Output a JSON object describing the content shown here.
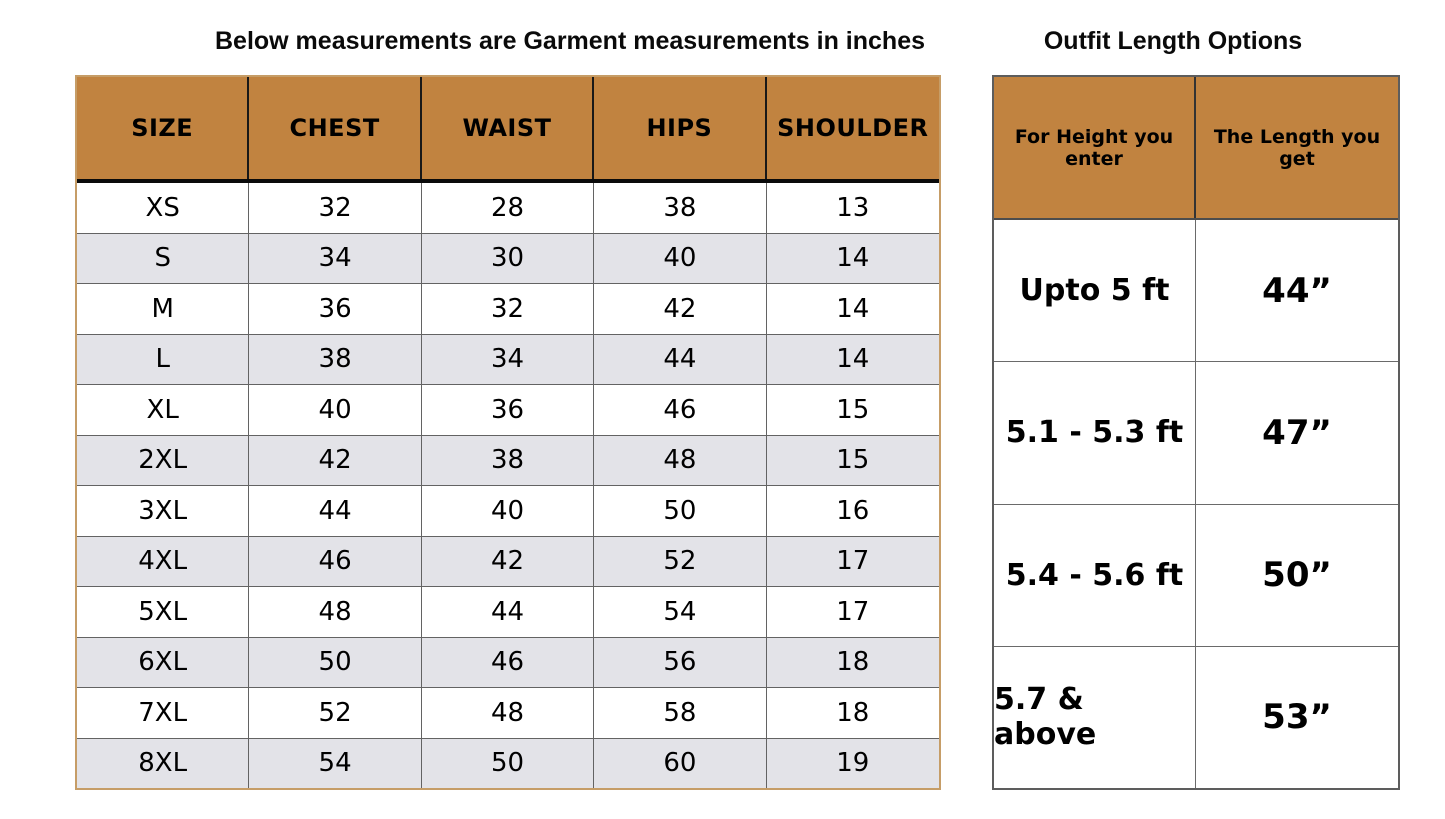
{
  "colors": {
    "header_bg": "#c18340",
    "alt_row_bg": "#e3e3e8",
    "size_table_outer_border": "#c69d67",
    "grid_line": "#636363",
    "text": "#000000"
  },
  "chart_data": [
    {
      "type": "table",
      "title": "Below measurements are Garment measurements in inches",
      "columns": [
        "SIZE",
        "CHEST",
        "WAIST",
        "HIPS",
        "SHOULDER"
      ],
      "rows": [
        [
          "XS",
          32,
          28,
          38,
          13
        ],
        [
          "S",
          34,
          30,
          40,
          14
        ],
        [
          "M",
          36,
          32,
          42,
          14
        ],
        [
          "L",
          38,
          34,
          44,
          14
        ],
        [
          "XL",
          40,
          36,
          46,
          15
        ],
        [
          "2XL",
          42,
          38,
          48,
          15
        ],
        [
          "3XL",
          44,
          40,
          50,
          16
        ],
        [
          "4XL",
          46,
          42,
          52,
          17
        ],
        [
          "5XL",
          48,
          44,
          54,
          17
        ],
        [
          "6XL",
          50,
          46,
          56,
          18
        ],
        [
          "7XL",
          52,
          48,
          58,
          18
        ],
        [
          "8XL",
          54,
          50,
          60,
          19
        ]
      ],
      "layout": "alternating row shading white / light-gray, tan header row"
    },
    {
      "type": "table",
      "title": "Outfit Length Options",
      "columns": [
        "For Height you enter",
        "The Length you get"
      ],
      "rows": [
        [
          "Upto 5 ft",
          "44”"
        ],
        [
          "5.1 - 5.3 ft",
          "47”"
        ],
        [
          "5.4 - 5.6 ft",
          "50”"
        ],
        [
          "5.7 & above",
          "53”"
        ]
      ],
      "layout": "tan header row, white body cells"
    }
  ]
}
